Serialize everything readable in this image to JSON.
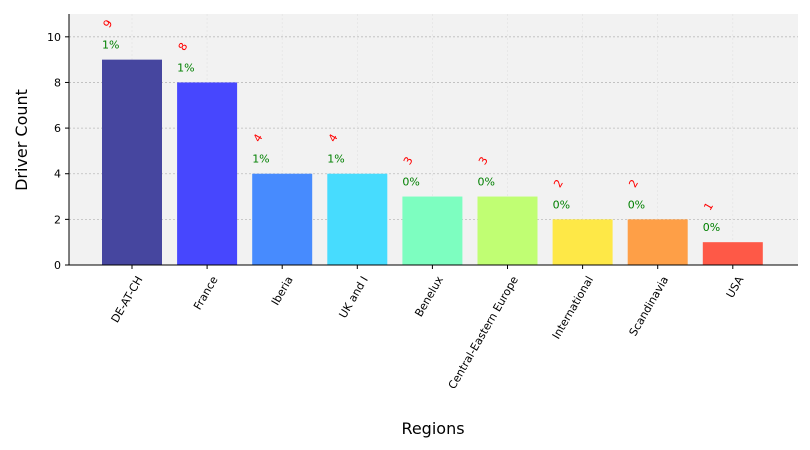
{
  "chart_data": {
    "type": "bar",
    "title": "",
    "xlabel": "Regions",
    "ylabel": "Driver Count",
    "ylim": [
      0,
      11
    ],
    "yticks": [
      0,
      2,
      4,
      6,
      8,
      10
    ],
    "grid": true,
    "categories": [
      "DE-AT-CH",
      "France",
      "Iberia",
      "UK and I",
      "Benelux",
      "Central-Eastern Europe",
      "International",
      "Scandinavia",
      "USA"
    ],
    "values": [
      9,
      8,
      4,
      4,
      3,
      3,
      2,
      2,
      1
    ],
    "count_labels": [
      "9",
      "8",
      "4",
      "4",
      "3",
      "3",
      "2",
      "2",
      "1"
    ],
    "percent_labels": [
      "1%",
      "1%",
      "1%",
      "1%",
      "0%",
      "0%",
      "0%",
      "0%",
      "0%"
    ],
    "colors": [
      "#46469f",
      "#4747fe",
      "#478bfe",
      "#47dcfe",
      "#7dfec0",
      "#c0fe73",
      "#fee847",
      "#fe9f47",
      "#fe5947"
    ],
    "count_label_color": "#ff0000",
    "percent_label_color": "#008000",
    "plot_background": "#f2f2f2"
  }
}
